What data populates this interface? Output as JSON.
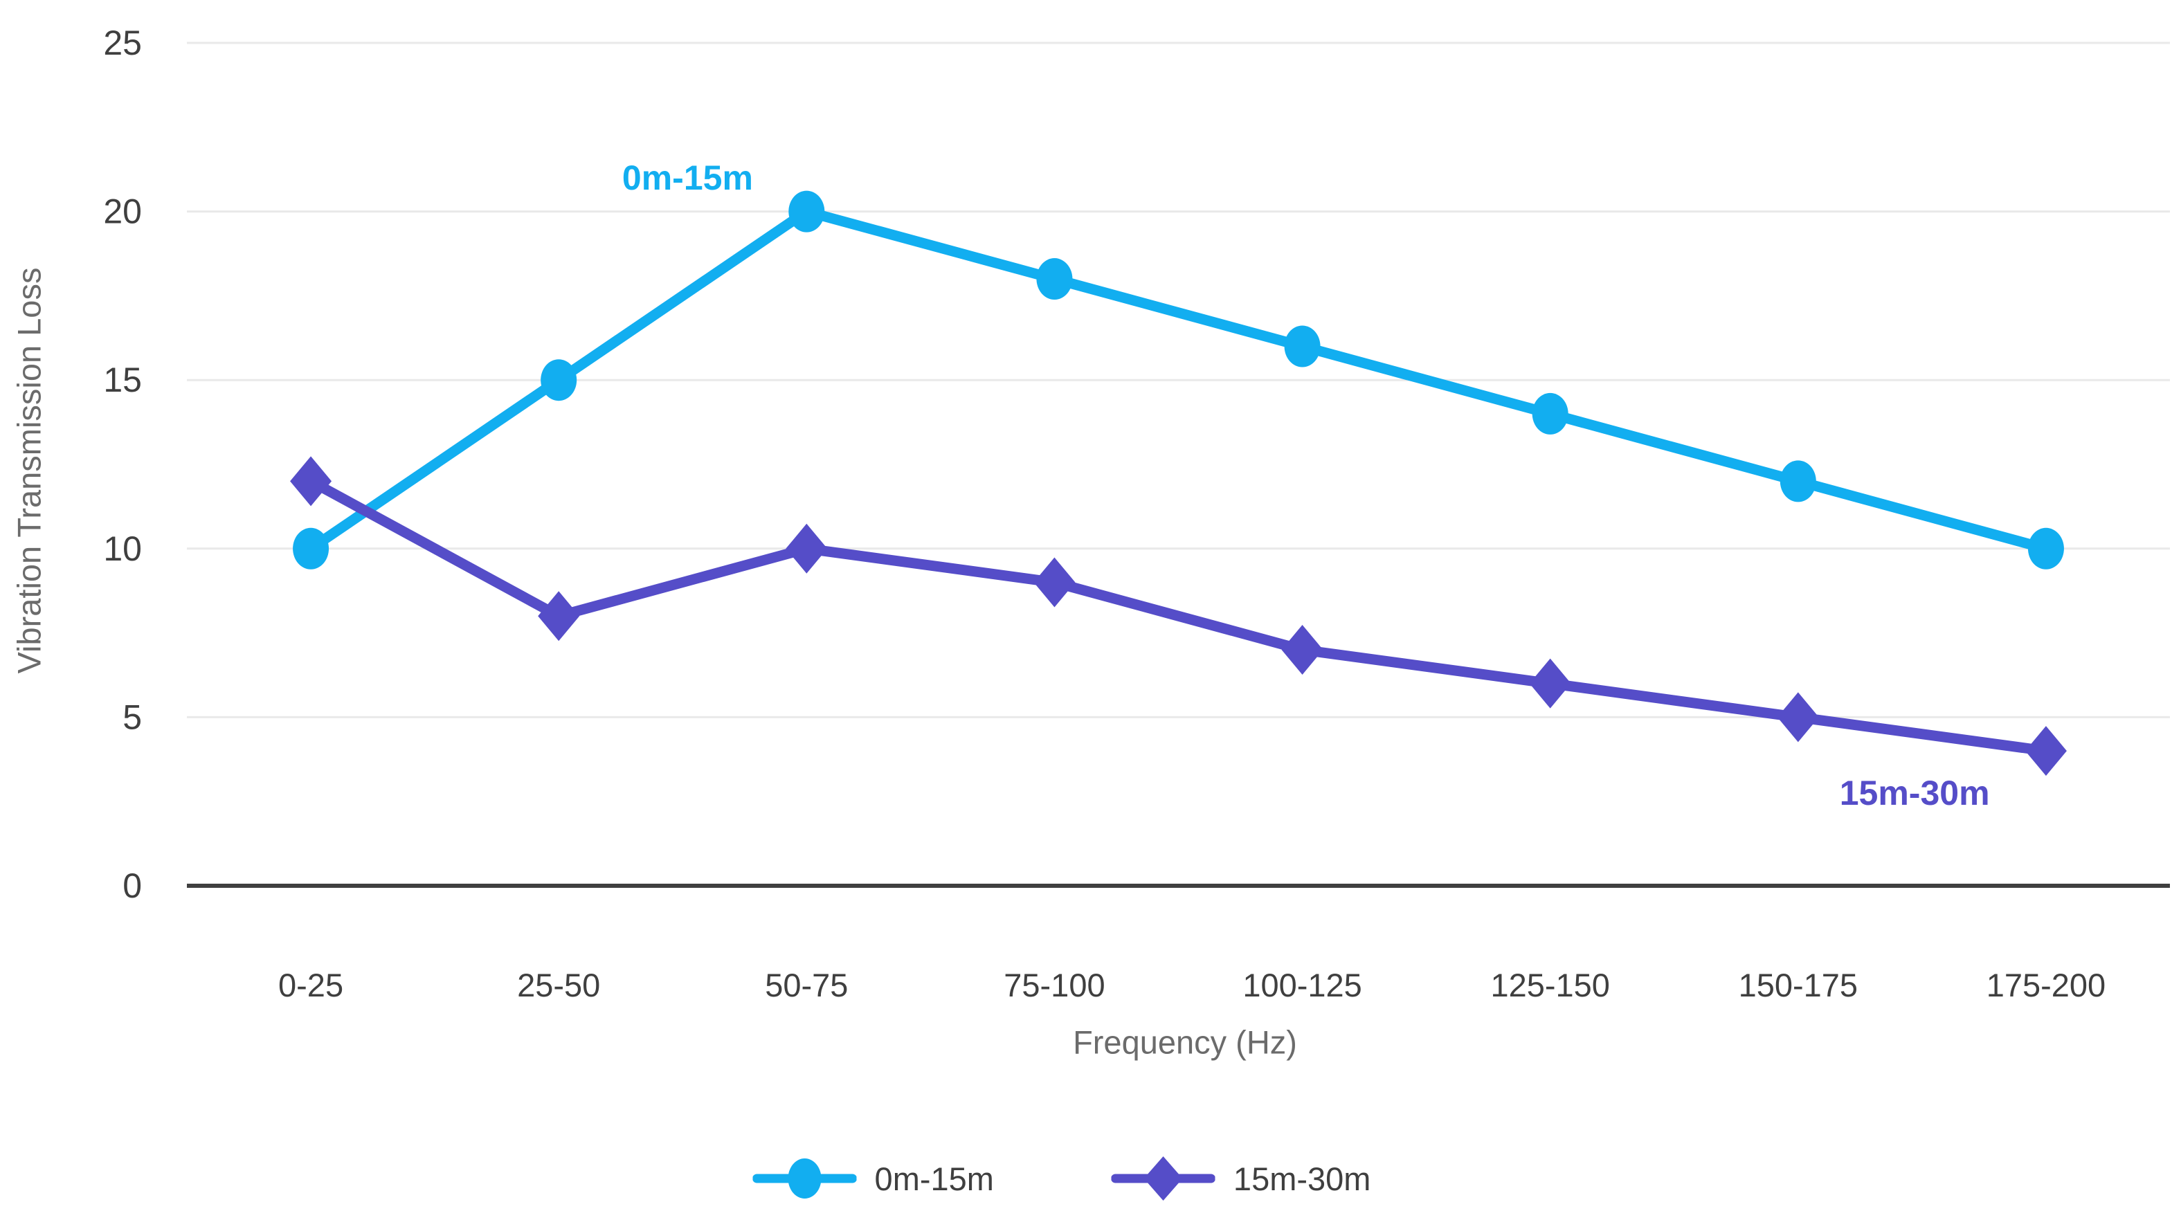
{
  "chart_data": {
    "type": "line",
    "title": "",
    "categories": [
      "0-25",
      "25-50",
      "50-75",
      "75-100",
      "100-125",
      "125-150",
      "150-175",
      "175-200"
    ],
    "series": [
      {
        "name": "0m-15m",
        "color": "#12aef0",
        "marker": "circle",
        "values": [
          10,
          15,
          20,
          18,
          16,
          14,
          12,
          10
        ]
      },
      {
        "name": "15m-30m",
        "color": "#554dc8",
        "marker": "diamond",
        "values": [
          12,
          8,
          10,
          9,
          7,
          6,
          5,
          4
        ]
      }
    ],
    "xlabel": "Frequency (Hz)",
    "ylabel": "Vibration Transmission Loss",
    "ylim": [
      0,
      25
    ],
    "yticks": [
      0,
      5,
      10,
      15,
      20,
      25
    ],
    "grid": true,
    "legend_position": "bottom",
    "annotations": [
      {
        "text": "0m-15m",
        "color": "#12aef0",
        "x_index": 1.52,
        "y_value": 21.0
      },
      {
        "text": "15m-30m",
        "color": "#554dc8",
        "x_index": 6.47,
        "y_value": 2.75
      }
    ],
    "style": {
      "gridline_color": "#e9e9e9",
      "axis_line_color": "#3f3f3f",
      "tick_text_color": "#3f3f3f",
      "axis_title_color": "#6b6b6b"
    }
  }
}
